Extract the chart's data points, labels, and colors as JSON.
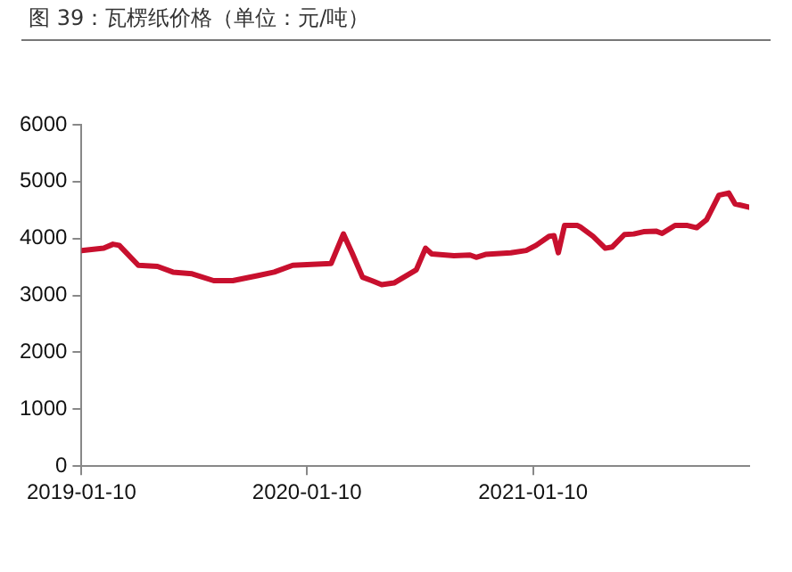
{
  "chart_data": {
    "type": "line",
    "title": "图 39：瓦楞纸价格（单位：元/吨）",
    "x": [
      "2019-01-10",
      "2019-02-15",
      "2019-03-02",
      "2019-03-12",
      "2019-04-12",
      "2019-05-13",
      "2019-06-07",
      "2019-07-08",
      "2019-08-12",
      "2019-09-12",
      "2019-10-23",
      "2019-11-18",
      "2019-12-18",
      "2020-02-18",
      "2020-03-09",
      "2020-03-23",
      "2020-04-09",
      "2020-04-24",
      "2020-05-10",
      "2020-05-30",
      "2020-06-24",
      "2020-07-05",
      "2020-07-20",
      "2020-07-30",
      "2020-09-04",
      "2020-09-30",
      "2020-10-10",
      "2020-10-25",
      "2020-12-05",
      "2020-12-30",
      "2021-01-15",
      "2021-02-05",
      "2021-02-13",
      "2021-02-20",
      "2021-03-02",
      "2021-03-23",
      "2021-03-28",
      "2021-04-17",
      "2021-05-07",
      "2021-05-18",
      "2021-06-07",
      "2021-06-22",
      "2021-07-08",
      "2021-07-28",
      "2021-08-07",
      "2021-08-28",
      "2021-09-17",
      "2021-10-02",
      "2021-10-18",
      "2021-11-07",
      "2021-11-23",
      "2021-12-03",
      "2021-12-26"
    ],
    "series": [
      {
        "color": "#c8102e",
        "values": [
          3790,
          3830,
          3900,
          3880,
          3530,
          3510,
          3410,
          3380,
          3260,
          3260,
          3350,
          3410,
          3530,
          3560,
          4080,
          3750,
          3320,
          3260,
          3190,
          3220,
          3380,
          3450,
          3830,
          3730,
          3700,
          3710,
          3670,
          3720,
          3750,
          3790,
          3880,
          4040,
          4050,
          3750,
          4230,
          4230,
          4200,
          4040,
          3830,
          3850,
          4070,
          4080,
          4120,
          4130,
          4090,
          4230,
          4230,
          4190,
          4330,
          4760,
          4800,
          4610,
          4550
        ]
      }
    ],
    "xlim": [
      "2019-01-10",
      "2021-12-26"
    ],
    "xticks": [
      "2019-01-10",
      "2020-01-10",
      "2021-01-10"
    ],
    "ylim": [
      0,
      6000
    ],
    "yticks": [
      0,
      1000,
      2000,
      3000,
      4000,
      5000,
      6000
    ],
    "grid": false,
    "legend": false,
    "marker": "none",
    "line_style": "solid"
  }
}
